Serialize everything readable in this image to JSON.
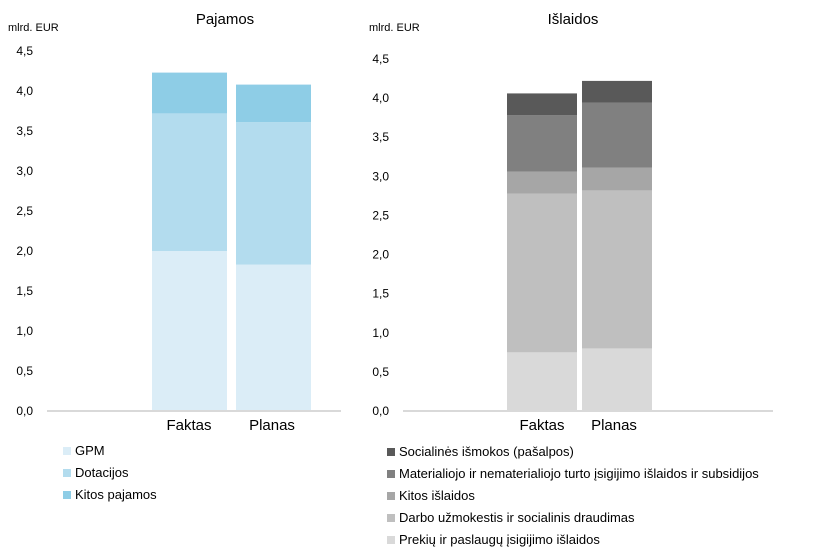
{
  "chart_data": [
    {
      "type": "bar",
      "stacked": true,
      "title": "Pajamos",
      "ylabel": "mlrd. EUR",
      "categories": [
        "Faktas",
        "Planas"
      ],
      "ylim": [
        0,
        4.5
      ],
      "yticks": [
        "0,0",
        "0,5",
        "1,0",
        "1,5",
        "2,0",
        "2,5",
        "3,0",
        "3,5",
        "4,0",
        "4,5"
      ],
      "series": [
        {
          "name": "GPM",
          "values": [
            2.0,
            1.83
          ],
          "color": "#dbedf7"
        },
        {
          "name": "Dotacijos",
          "values": [
            1.72,
            1.78
          ],
          "color": "#b3dcee"
        },
        {
          "name": "Kitos pajamos",
          "values": [
            0.51,
            0.47
          ],
          "color": "#8ecde6"
        }
      ],
      "legend_position": "bottom-left",
      "grid": false
    },
    {
      "type": "bar",
      "stacked": true,
      "title": "Išlaidos",
      "ylabel": "mlrd. EUR",
      "categories": [
        "Faktas",
        "Planas"
      ],
      "ylim": [
        0,
        4.5
      ],
      "yticks": [
        "0,0",
        "0,5",
        "1,0",
        "1,5",
        "2,0",
        "2,5",
        "3,0",
        "3,5",
        "4,0",
        "4,5"
      ],
      "series": [
        {
          "name": "Prekių ir paslaugų įsigijimo išlaidos",
          "values": [
            0.75,
            0.8
          ],
          "color": "#d9d9d9"
        },
        {
          "name": "Darbo užmokestis ir socialinis draudimas",
          "values": [
            2.03,
            2.02
          ],
          "color": "#bfbfbf"
        },
        {
          "name": "Kitos išlaidos",
          "values": [
            0.28,
            0.29
          ],
          "color": "#a6a6a6"
        },
        {
          "name": "Materialiojo ir nematerialiojo turto įsigijimo išlaidos ir subsidijos",
          "values": [
            0.72,
            0.83
          ],
          "color": "#808080"
        },
        {
          "name": "Socialinės išmokos (pašalpos)",
          "values": [
            0.28,
            0.28
          ],
          "color": "#595959"
        }
      ],
      "legend_position": "bottom",
      "grid": false
    }
  ]
}
